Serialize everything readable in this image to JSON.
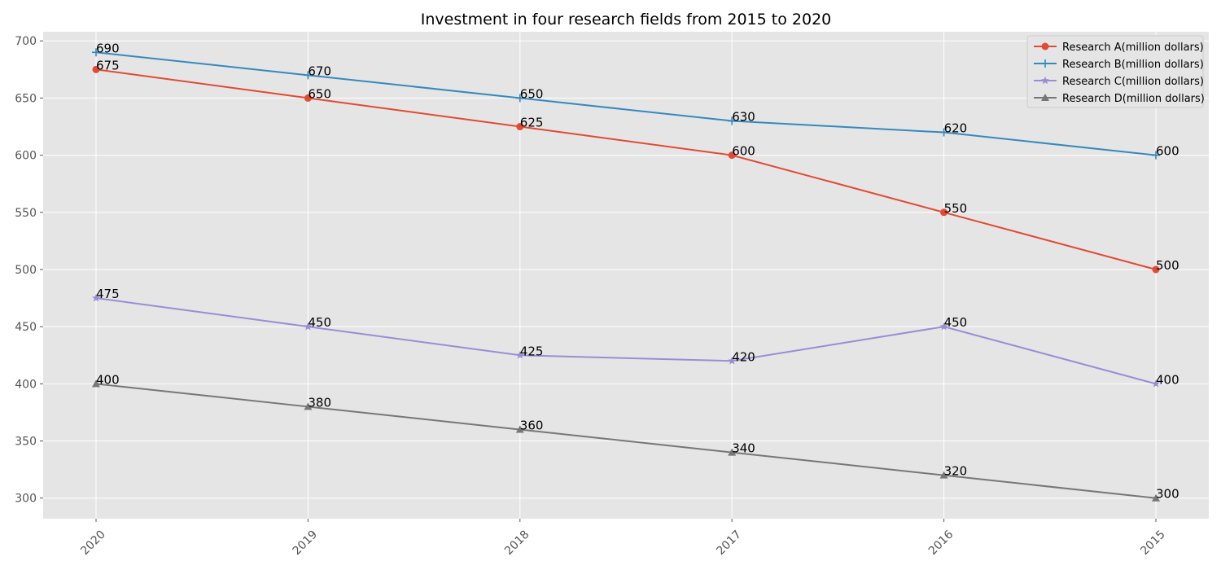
{
  "chart_data": {
    "type": "line",
    "title": "Investment in four research fields from 2015 to 2020",
    "xlabel": "",
    "ylabel": "",
    "categories": [
      "2020",
      "2019",
      "2018",
      "2017",
      "2016",
      "2015"
    ],
    "ylim": [
      282,
      708
    ],
    "yticks": [
      300,
      350,
      400,
      450,
      500,
      550,
      600,
      650,
      700
    ],
    "grid": true,
    "legend_position": "top-right",
    "series": [
      {
        "name": "Research A(million dollars)",
        "color": "#E24A33",
        "marker": "circle",
        "values": [
          675,
          650,
          625,
          600,
          550,
          500
        ]
      },
      {
        "name": "Research B(million dollars)",
        "color": "#348ABD",
        "marker": "plus",
        "values": [
          690,
          670,
          650,
          630,
          620,
          600
        ]
      },
      {
        "name": "Research C(million dollars)",
        "color": "#988ED5",
        "marker": "star",
        "values": [
          475,
          450,
          425,
          420,
          450,
          400
        ]
      },
      {
        "name": "Research D(million dollars)",
        "color": "#777777",
        "marker": "triangle",
        "values": [
          400,
          380,
          360,
          340,
          320,
          300
        ]
      }
    ]
  }
}
